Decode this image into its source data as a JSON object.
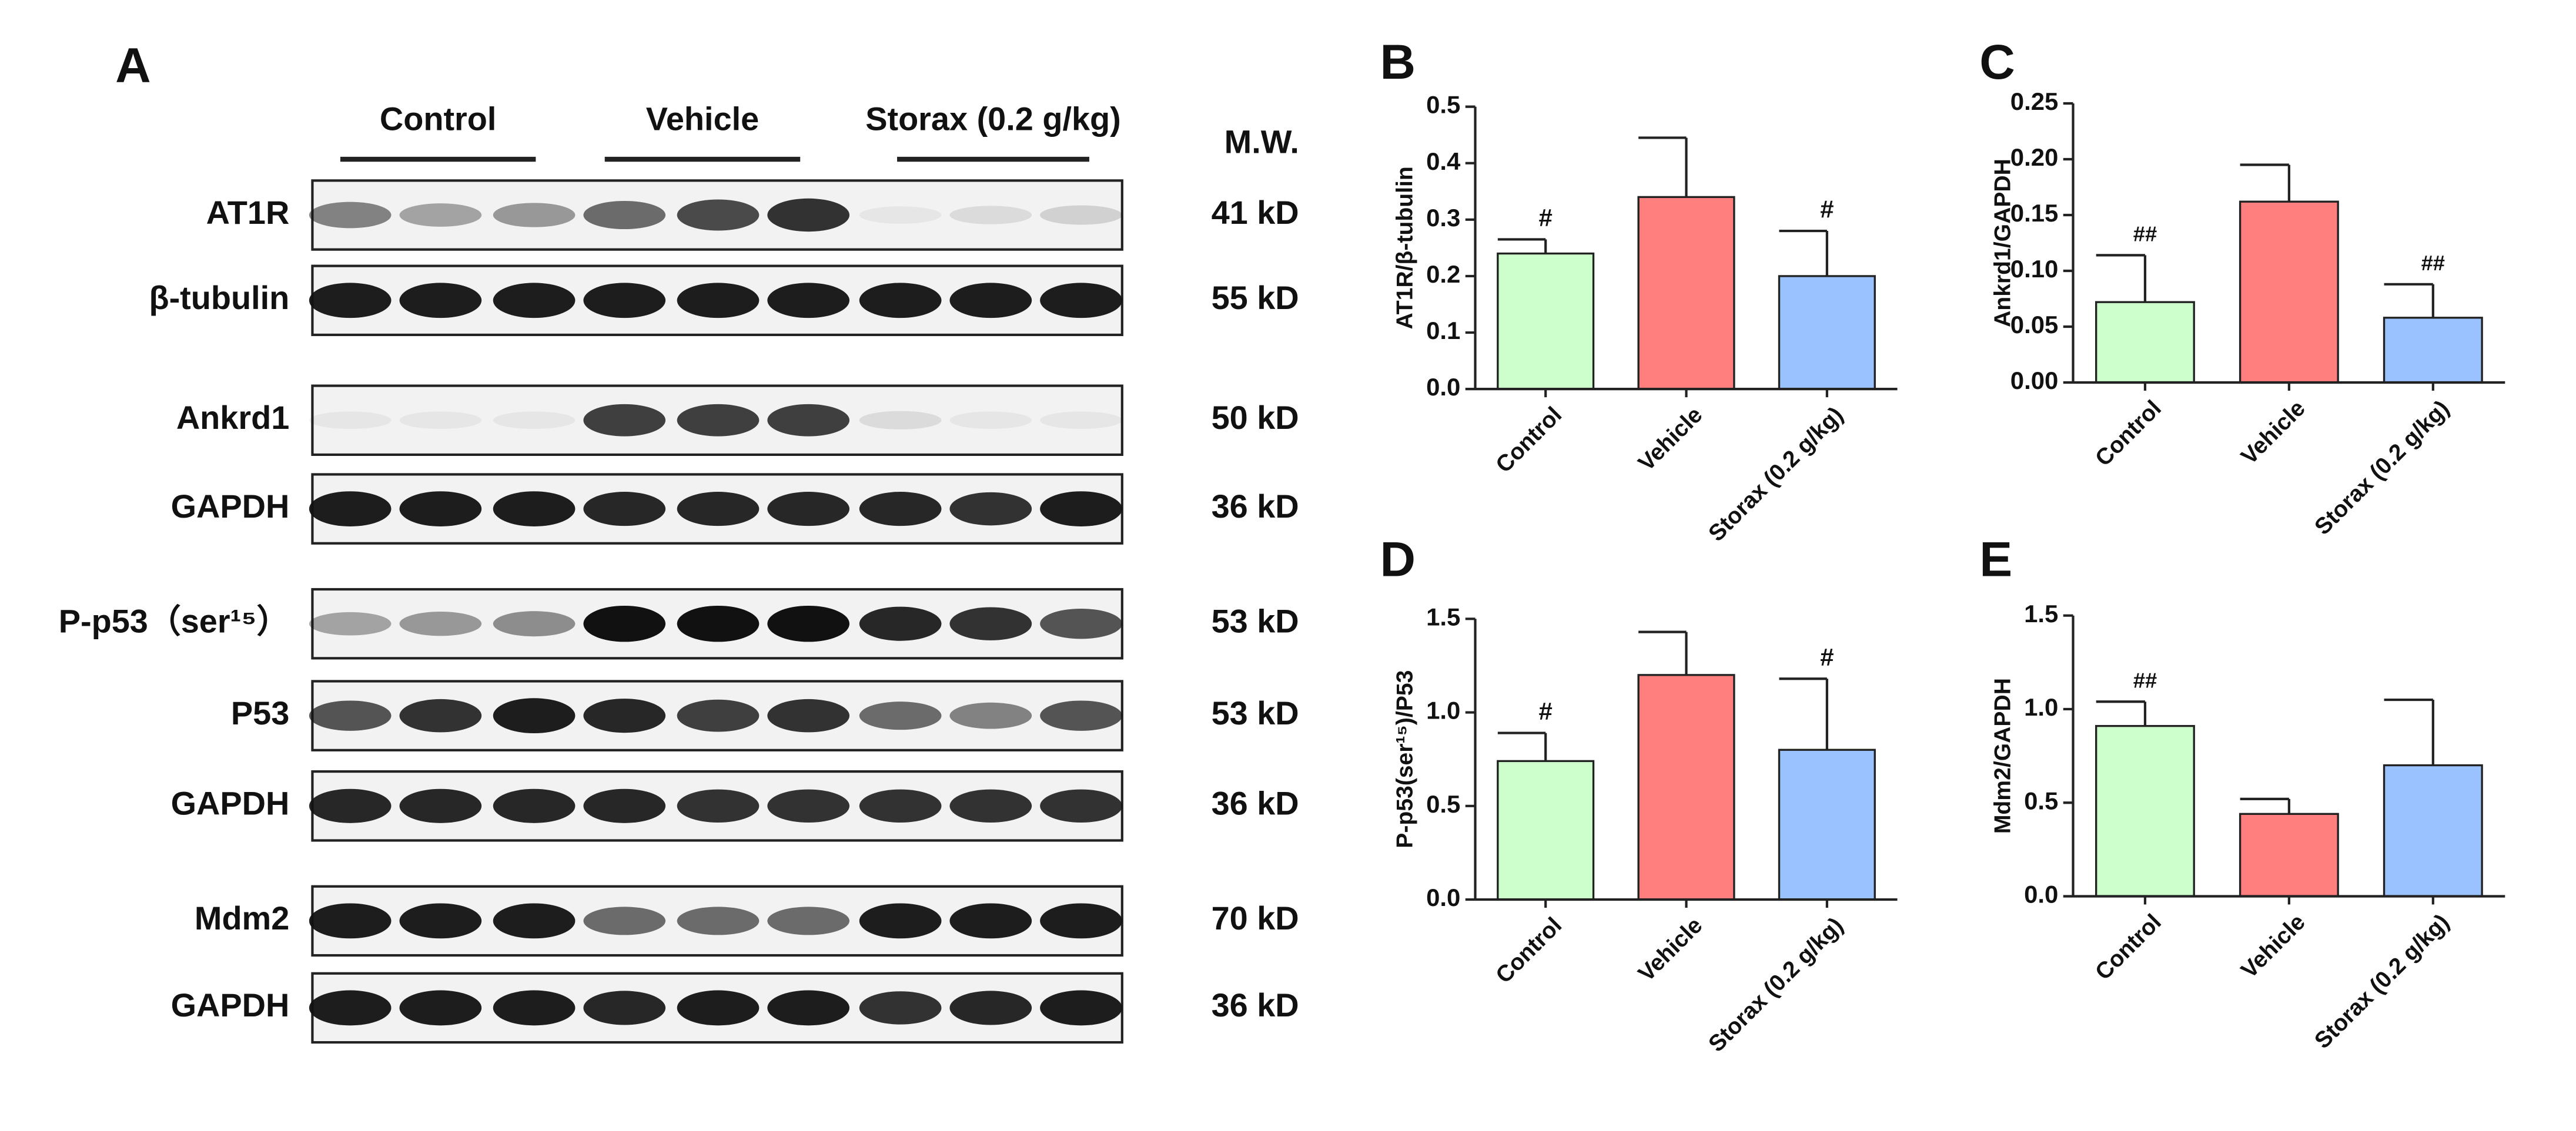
{
  "blot": {
    "panel_label": "A",
    "groups": [
      "Control",
      "Vehicle",
      "Storax (0.2 g/kg)"
    ],
    "mw_header": "M.W.",
    "rows": [
      {
        "label": "AT1R",
        "mw": "41 kD"
      },
      {
        "label": "β-tubulin",
        "mw": "55 kD"
      },
      {
        "label": "Ankrd1",
        "mw": "50 kD"
      },
      {
        "label": "GAPDH",
        "mw": "36 kD"
      },
      {
        "label": "P-p53（ser¹⁵）",
        "mw": "53 kD"
      },
      {
        "label": "P53",
        "mw": "53 kD"
      },
      {
        "label": "GAPDH",
        "mw": "36 kD"
      },
      {
        "label": "Mdm2",
        "mw": "70 kD"
      },
      {
        "label": "GAPDH",
        "mw": "36 kD"
      }
    ]
  },
  "chart_data": [
    {
      "type": "bar",
      "panel_label": "B",
      "ylabel": "AT1R/β-tubulin",
      "categories": [
        "Control",
        "Vehicle",
        "Storax (0.2 g/kg)"
      ],
      "values": [
        0.24,
        0.34,
        0.2
      ],
      "errors": [
        0.025,
        0.105,
        0.08
      ],
      "annotations": [
        "#",
        null,
        "#"
      ],
      "colors": [
        "#ccffcc",
        "#ff7f7f",
        "#99c2ff"
      ],
      "ylim": [
        0,
        0.5
      ],
      "yticks": [
        {
          "value": 0,
          "label": "0.0"
        },
        0.1,
        0.2,
        0.3,
        0.4,
        0.5
      ]
    },
    {
      "type": "bar",
      "panel_label": "C",
      "ylabel": "Ankrd1/GAPDH",
      "categories": [
        "Control",
        "Vehicle",
        "Storax (0.2 g/kg)"
      ],
      "values": [
        0.072,
        0.162,
        0.058
      ],
      "errors": [
        0.042,
        0.033,
        0.03
      ],
      "annotations": [
        "##",
        null,
        "##"
      ],
      "colors": [
        "#ccffcc",
        "#ff7f7f",
        "#99c2ff"
      ],
      "ylim": [
        0,
        0.25
      ],
      "yticks": [
        {
          "value": 0,
          "label": "0.00"
        },
        0.05,
        {
          "value": 0.1,
          "label": "0.10"
        },
        0.15,
        {
          "value": 0.2,
          "label": "0.20"
        },
        0.25
      ]
    },
    {
      "type": "bar",
      "panel_label": "D",
      "ylabel": "P-p53(ser¹⁵)/P53",
      "categories": [
        "Control",
        "Vehicle",
        "Storax (0.2 g/kg)"
      ],
      "values": [
        0.74,
        1.2,
        0.8
      ],
      "errors": [
        0.15,
        0.23,
        0.38
      ],
      "annotations": [
        "#",
        null,
        "#"
      ],
      "colors": [
        "#ccffcc",
        "#ff7f7f",
        "#99c2ff"
      ],
      "ylim": [
        0,
        1.5
      ],
      "yticks": [
        {
          "value": 0,
          "label": "0.0"
        },
        0.5,
        {
          "value": 1,
          "label": "1.0"
        },
        1.5
      ]
    },
    {
      "type": "bar",
      "panel_label": "E",
      "ylabel": "Mdm2/GAPDH",
      "categories": [
        "Control",
        "Vehicle",
        "Storax (0.2 g/kg)"
      ],
      "values": [
        0.91,
        0.44,
        0.7
      ],
      "errors": [
        0.13,
        0.08,
        0.35
      ],
      "annotations": [
        "##",
        null,
        null
      ],
      "colors": [
        "#ccffcc",
        "#ff7f7f",
        "#99c2ff"
      ],
      "ylim": [
        0,
        1.5
      ],
      "yticks": [
        {
          "value": 0,
          "label": "0.0"
        },
        0.5,
        {
          "value": 1,
          "label": "1.0"
        },
        1.5
      ]
    }
  ]
}
